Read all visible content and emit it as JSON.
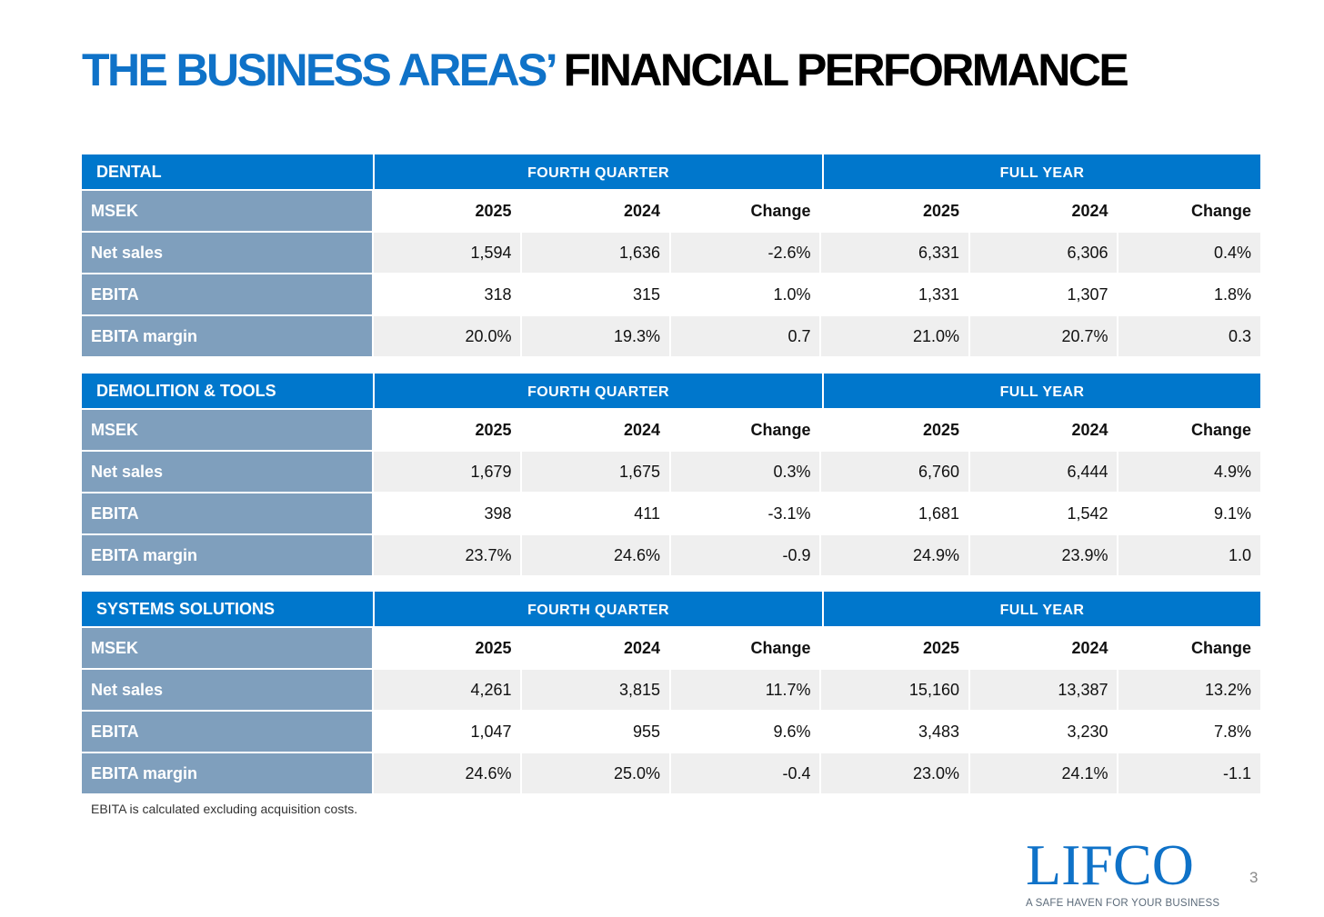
{
  "title": {
    "part1": "THE BUSINESS AREAS’",
    "part2": " FINANCIAL PERFORMANCE"
  },
  "colors": {
    "accent_blue": "#0077cc",
    "row_label": "#7f9fbd",
    "row_shade": "#efefef"
  },
  "sections": [
    {
      "name": "DENTAL",
      "group1": "FOURTH QUARTER",
      "group2": "FULL YEAR",
      "columns": [
        "MSEK",
        "2025",
        "2024",
        "Change",
        "2025",
        "2024",
        "Change"
      ],
      "rows": [
        [
          "Net sales",
          "1,594",
          "1,636",
          "-2.6%",
          "6,331",
          "6,306",
          "0.4%"
        ],
        [
          "EBITA",
          "318",
          "315",
          "1.0%",
          "1,331",
          "1,307",
          "1.8%"
        ],
        [
          "EBITA margin",
          "20.0%",
          "19.3%",
          "0.7",
          "21.0%",
          "20.7%",
          "0.3"
        ]
      ]
    },
    {
      "name": "DEMOLITION & TOOLS",
      "group1": "FOURTH QUARTER",
      "group2": "FULL YEAR",
      "columns": [
        "MSEK",
        "2025",
        "2024",
        "Change",
        "2025",
        "2024",
        "Change"
      ],
      "rows": [
        [
          "Net sales",
          "1,679",
          "1,675",
          "0.3%",
          "6,760",
          "6,444",
          "4.9%"
        ],
        [
          "EBITA",
          "398",
          "411",
          "-3.1%",
          "1,681",
          "1,542",
          "9.1%"
        ],
        [
          "EBITA margin",
          "23.7%",
          "24.6%",
          "-0.9",
          "24.9%",
          "23.9%",
          "1.0"
        ]
      ]
    },
    {
      "name": "SYSTEMS SOLUTIONS",
      "group1": "FOURTH QUARTER",
      "group2": "FULL YEAR",
      "columns": [
        "MSEK",
        "2025",
        "2024",
        "Change",
        "2025",
        "2024",
        "Change"
      ],
      "rows": [
        [
          "Net sales",
          "4,261",
          "3,815",
          "11.7%",
          "15,160",
          "13,387",
          "13.2%"
        ],
        [
          "EBITA",
          "1,047",
          "955",
          "9.6%",
          "3,483",
          "3,230",
          "7.8%"
        ],
        [
          "EBITA margin",
          "24.6%",
          "25.0%",
          "-0.4",
          "23.0%",
          "24.1%",
          "-1.1"
        ]
      ]
    }
  ],
  "footnote": "EBITA is calculated excluding acquisition costs.",
  "logo": {
    "name": "LIFCO",
    "tagline": "A SAFE HAVEN FOR YOUR BUSINESS"
  },
  "page_number": "3"
}
